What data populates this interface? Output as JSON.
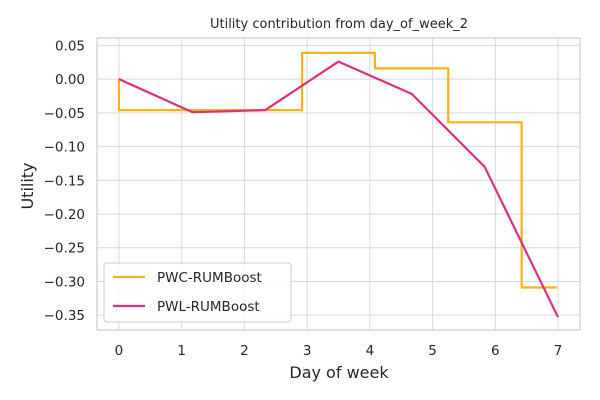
{
  "chart_data": {
    "type": "line",
    "title": "Utility contribution from day_of_week_2",
    "xlabel": "Day of week",
    "ylabel": "Utility",
    "xlim": [
      -0.35,
      7.35
    ],
    "ylim": [
      -0.372,
      0.061
    ],
    "xticks": [
      0,
      1,
      2,
      3,
      4,
      5,
      6,
      7
    ],
    "yticks": [
      0.05,
      0.0,
      -0.05,
      -0.1,
      -0.15,
      -0.2,
      -0.25,
      -0.3,
      -0.35
    ],
    "ytick_labels": [
      "0.05",
      "0.00",
      "−0.05",
      "−0.10",
      "−0.15",
      "−0.20",
      "−0.25",
      "−0.30",
      "−0.35"
    ],
    "grid": true,
    "legend_position": "lower-left",
    "series": [
      {
        "name": "PWC-RUMBoost",
        "color": "#fbb117",
        "step": true,
        "x": [
          0,
          0,
          2.92,
          2.92,
          4.08,
          4.08,
          5.25,
          5.25,
          6.42,
          6.42,
          6.98
        ],
        "y": [
          0.0,
          -0.046,
          -0.046,
          0.039,
          0.039,
          0.016,
          0.016,
          -0.064,
          -0.064,
          -0.309,
          -0.309
        ]
      },
      {
        "name": "PWL-RUMBoost",
        "color": "#d9307f",
        "step": false,
        "x": [
          0,
          1.17,
          2.33,
          3.5,
          4.67,
          5.83,
          7.0
        ],
        "y": [
          0.0,
          -0.049,
          -0.046,
          0.026,
          -0.022,
          -0.13,
          -0.353
        ]
      }
    ]
  }
}
